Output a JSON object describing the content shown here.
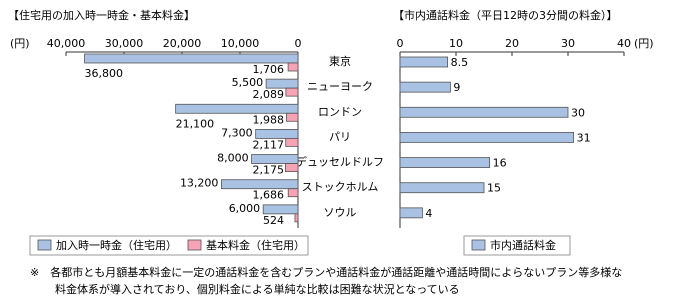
{
  "chart_data": [
    {
      "type": "bar",
      "orientation": "horizontal",
      "x_reversed": true,
      "title": "【住宅用の加入時一時金・基本料金】",
      "xlabel": "(円)",
      "categories": [
        "東京",
        "ニューヨーク",
        "ロンドン",
        "パリ",
        "デュッセルドルフ",
        "ストックホルム",
        "ソウル"
      ],
      "series": [
        {
          "name": "加入時一時金（住宅用）",
          "color": "#a9c1e3",
          "values": [
            36800,
            5500,
            21100,
            7300,
            8000,
            13200,
            6000
          ],
          "value_labels": [
            "36,800",
            "5,500",
            "21,100",
            "7,300",
            "8,000",
            "13,200",
            "6,000"
          ]
        },
        {
          "name": "基本料金（住宅用）",
          "color": "#f5a3b5",
          "values": [
            1706,
            2089,
            1988,
            2117,
            2175,
            1686,
            524
          ],
          "value_labels": [
            "1,706",
            "2,089",
            "1,988",
            "2,117",
            "2,175",
            "1,686",
            "524"
          ]
        }
      ],
      "xlim": [
        0,
        40000
      ],
      "xticks": [
        {
          "value": 40000,
          "label": "40,000"
        },
        {
          "value": 30000,
          "label": "30,000"
        },
        {
          "value": 20000,
          "label": "20,000"
        },
        {
          "value": 10000,
          "label": "10,000"
        },
        0
      ]
    },
    {
      "type": "bar",
      "orientation": "horizontal",
      "title": "【市内通話料金（平日12時の3分間の料金）】",
      "xlabel": "(円)",
      "series": [
        {
          "name": "市内通話料金",
          "color": "#a9c1e3",
          "values": [
            8.5,
            9,
            30,
            31,
            16,
            15,
            4
          ]
        }
      ],
      "xlim": [
        0,
        40
      ],
      "xticks": [
        0,
        10,
        20,
        30,
        40
      ]
    }
  ],
  "note": [
    "※　各都市とも月額基本料金に一定の通話料金を含むプランや通話料金が通話距離や通話時間によらないプラン等多様な",
    "料金体系が導入されており、個別料金による単純な比較は困難な状況となっている"
  ]
}
